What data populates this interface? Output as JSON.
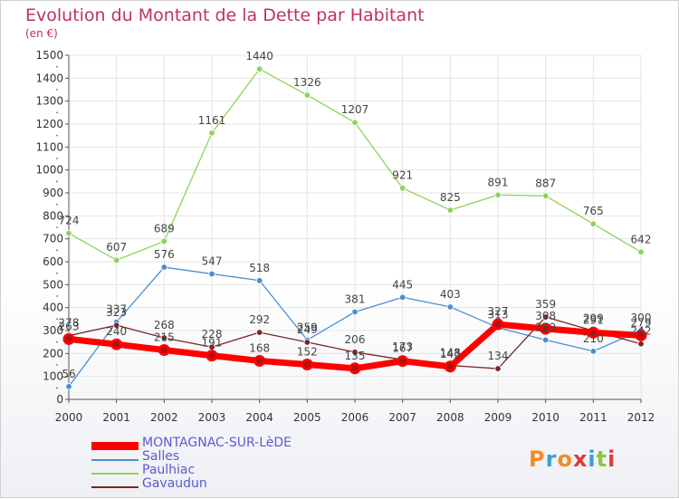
{
  "title": "Evolution du Montant de la Dette par Habitant",
  "subtitle": "(en €)",
  "logo": {
    "text": "Proxiti",
    "colors": [
      "#f28c28",
      "#3aa0d8",
      "#f28c28",
      "#e03a3a",
      "#3aa0d8",
      "#8cc63f",
      "#e03a3a"
    ]
  },
  "chart_data": {
    "type": "line",
    "title": "Evolution du Montant de la Dette par Habitant",
    "ylabel": "(en €)",
    "xlabel": "",
    "x": [
      "2000",
      "2001",
      "2002",
      "2003",
      "2004",
      "2005",
      "2006",
      "2007",
      "2008",
      "2009",
      "2010",
      "2011",
      "2012"
    ],
    "ylim": [
      0,
      1500
    ],
    "yticks": [
      0,
      100,
      200,
      300,
      400,
      500,
      600,
      700,
      800,
      900,
      1000,
      1100,
      1200,
      1300,
      1400,
      1500
    ],
    "grid": true,
    "legend_position": "bottom-left",
    "series": [
      {
        "name": "Paulhiac",
        "color": "#8cd45a",
        "width": 1.3,
        "values": [
          724,
          607,
          689,
          1161,
          1440,
          1326,
          1207,
          921,
          825,
          891,
          887,
          765,
          642
        ]
      },
      {
        "name": "Salles",
        "color": "#4a8fd0",
        "width": 1.3,
        "values": [
          56,
          337,
          576,
          547,
          518,
          259,
          381,
          445,
          403,
          313,
          259,
          210,
          300
        ]
      },
      {
        "name": "Gavaudun",
        "color": "#7a2525",
        "width": 1.3,
        "values": [
          278,
          323,
          268,
          228,
          292,
          249,
          206,
          173,
          148,
          134,
          359,
          299,
          242
        ]
      },
      {
        "name": "MONTAGNAC-SUR-LèDE",
        "color": "#ff0000",
        "width": 7,
        "values": [
          263,
          240,
          215,
          191,
          168,
          152,
          135,
          167,
          143,
          327,
          308,
          291,
          279
        ]
      }
    ]
  }
}
